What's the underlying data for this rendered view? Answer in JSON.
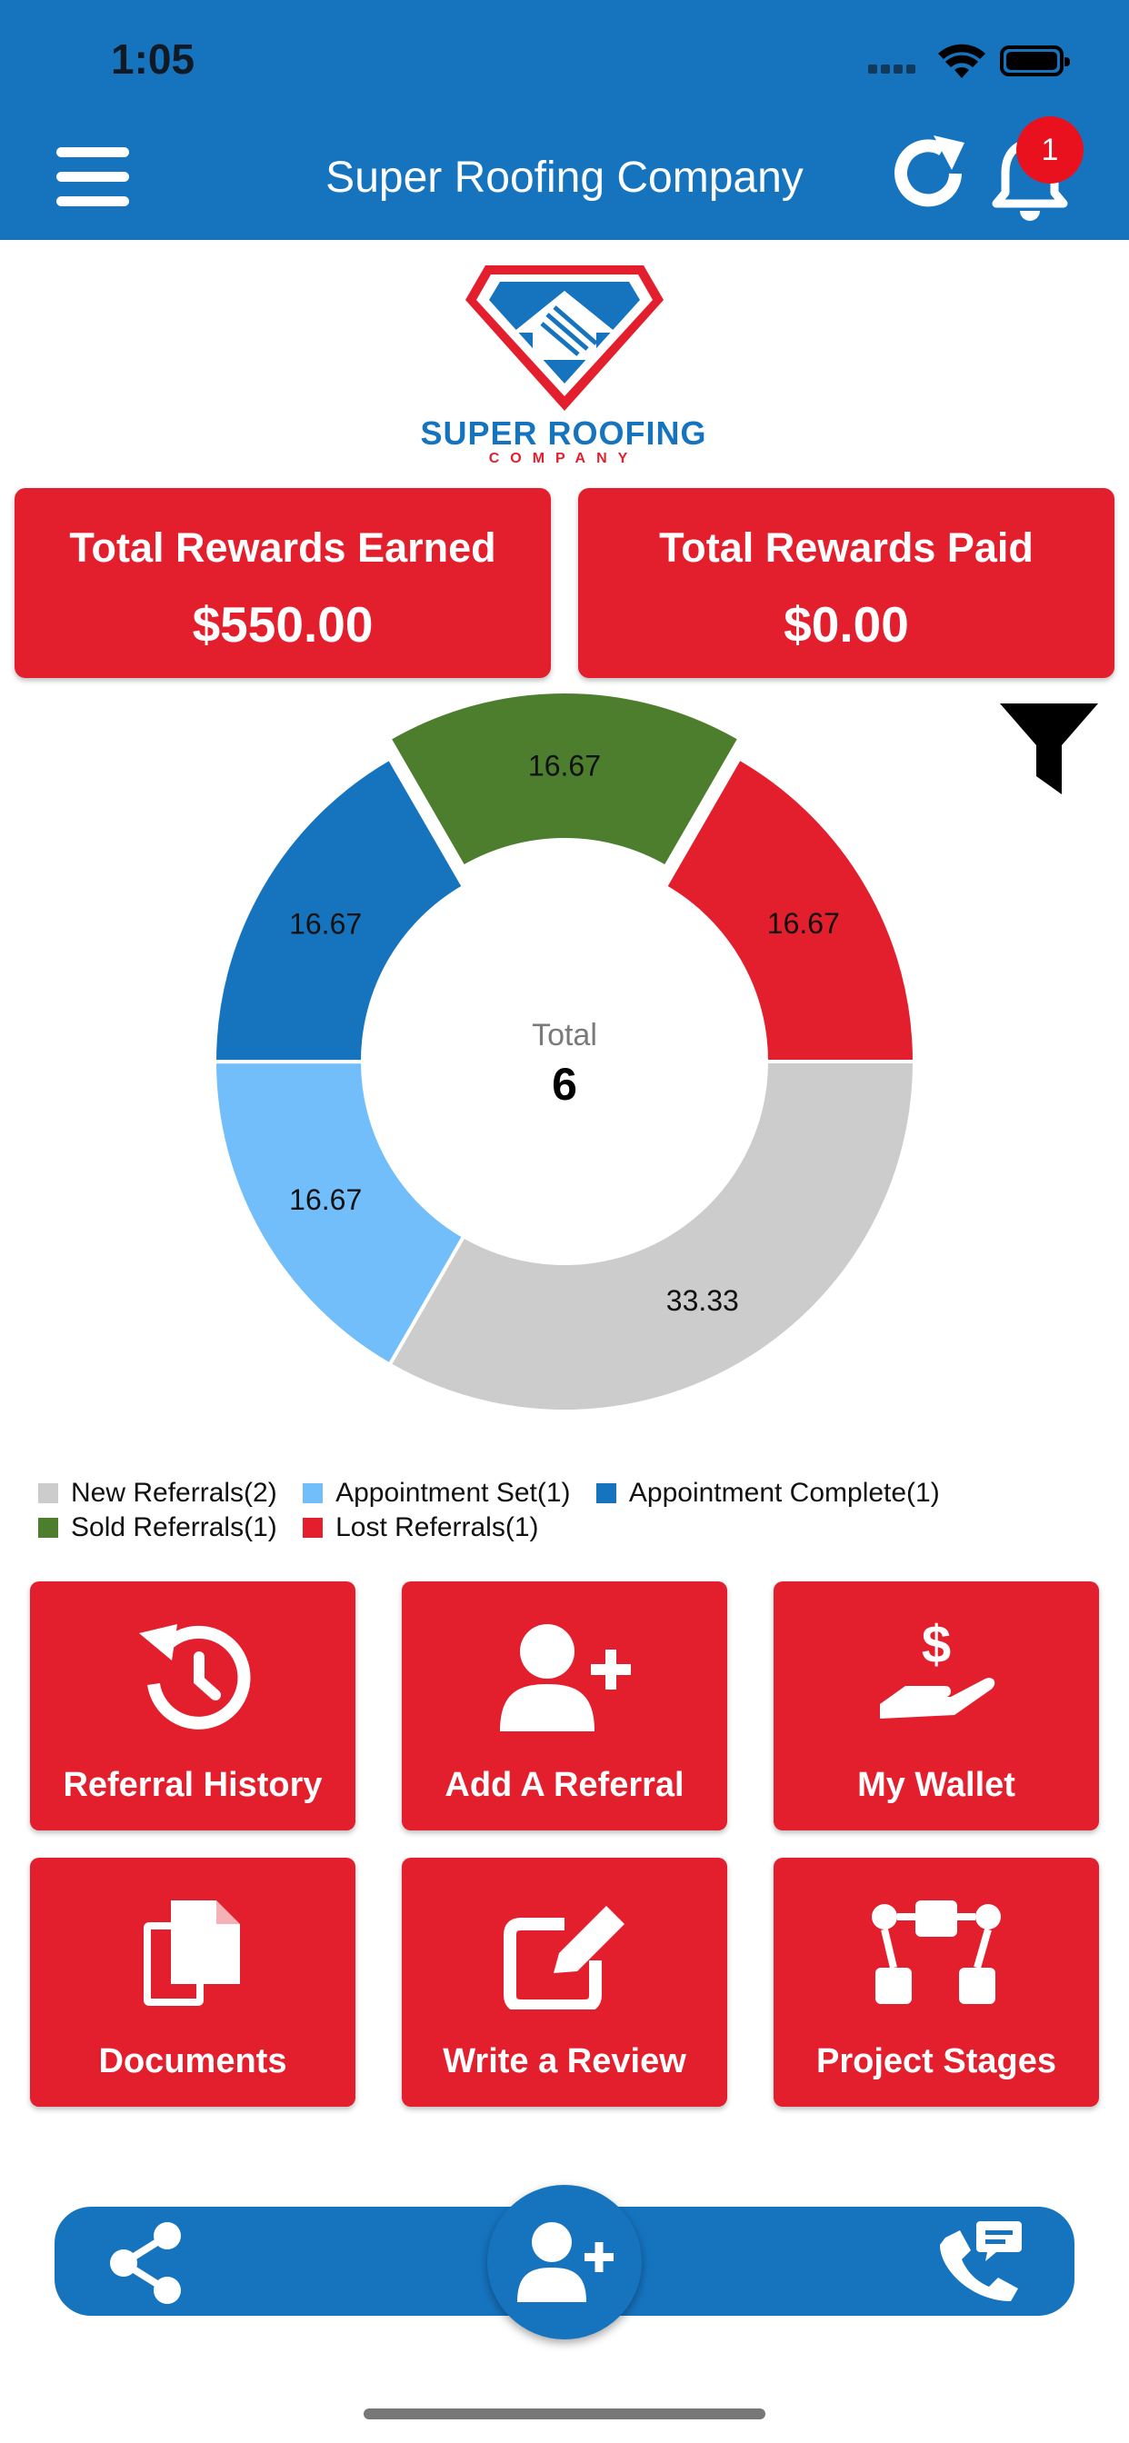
{
  "status_bar": {
    "time": "1:05"
  },
  "header": {
    "title": "Super Roofing Company",
    "notification_count": "1",
    "menu_icon": "hamburger-icon",
    "refresh_icon": "refresh-icon",
    "bell_icon": "bell-icon"
  },
  "logo": {
    "name": "SUPER ROOFING",
    "sub": "COMPANY"
  },
  "rewards": {
    "earned_label": "Total Rewards Earned",
    "earned_value": "$550.00",
    "paid_label": "Total Rewards Paid",
    "paid_value": "$0.00"
  },
  "chart_data": {
    "type": "pie",
    "center_label": "Total",
    "center_value": "6",
    "categories": [
      "New Referrals",
      "Appointment Set",
      "Appointment Complete",
      "Sold Referrals",
      "Lost Referrals"
    ],
    "values": [
      33.33,
      16.67,
      16.67,
      16.67,
      16.67
    ],
    "counts": [
      2,
      1,
      1,
      1,
      1
    ],
    "colors": [
      "#CCCCCC",
      "#71BEFA",
      "#1674BF",
      "#4C7E2D",
      "#E41F2D"
    ],
    "legend": [
      {
        "label": "New Referrals(2)",
        "color": "#CCCCCC"
      },
      {
        "label": "Appointment Set(1)",
        "color": "#71BEFA"
      },
      {
        "label": "Appointment Complete(1)",
        "color": "#1674BF"
      },
      {
        "label": "Sold Referrals(1)",
        "color": "#4C7E2D"
      },
      {
        "label": "Lost Referrals(1)",
        "color": "#E41F2D"
      }
    ]
  },
  "actions": [
    {
      "label": "Referral History",
      "icon": "history-icon"
    },
    {
      "label": "Add A Referral",
      "icon": "add-user-icon"
    },
    {
      "label": "My Wallet",
      "icon": "wallet-hand-icon"
    },
    {
      "label": "Documents",
      "icon": "documents-icon"
    },
    {
      "label": "Write a Review",
      "icon": "edit-icon"
    },
    {
      "label": "Project Stages",
      "icon": "stages-icon"
    }
  ],
  "bottom_nav": {
    "share_icon": "share-icon",
    "center_icon": "add-user-icon",
    "call_icon": "phone-chat-icon"
  },
  "colors": {
    "brand_blue": "#1674BF",
    "brand_red": "#E41F2D"
  }
}
